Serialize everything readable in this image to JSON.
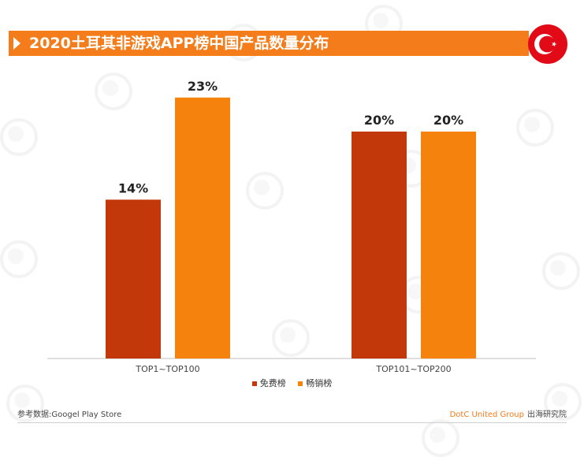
{
  "header": {
    "title": "2020土耳其非游戏APP榜中国产品数量分布"
  },
  "flag": {
    "name": "turkey-flag",
    "colors": {
      "background": "#e30a17",
      "symbol": "#ffffff"
    }
  },
  "colors": {
    "title_bar": "#f47c1b",
    "free_series": "#c2380b",
    "grossing_series": "#f5820d",
    "axis": "#bfbfbf"
  },
  "chart_data": {
    "type": "bar",
    "categories": [
      "TOP1~TOP100",
      "TOP101~TOP200"
    ],
    "series": [
      {
        "name": "免费榜",
        "values": [
          14,
          20
        ],
        "labels": [
          "14%",
          "20%"
        ],
        "color": "#c2380b"
      },
      {
        "name": "畅销榜",
        "values": [
          23,
          20
        ],
        "labels": [
          "23%",
          "20%"
        ],
        "color": "#f5820d"
      }
    ],
    "unit": "%",
    "ylim": [
      0,
      25
    ],
    "grid": false,
    "legend_position": "bottom"
  },
  "footer": {
    "source": "参考数据:Googel Play Store",
    "brand": "DotC United Group",
    "institute": "出海研究院"
  }
}
